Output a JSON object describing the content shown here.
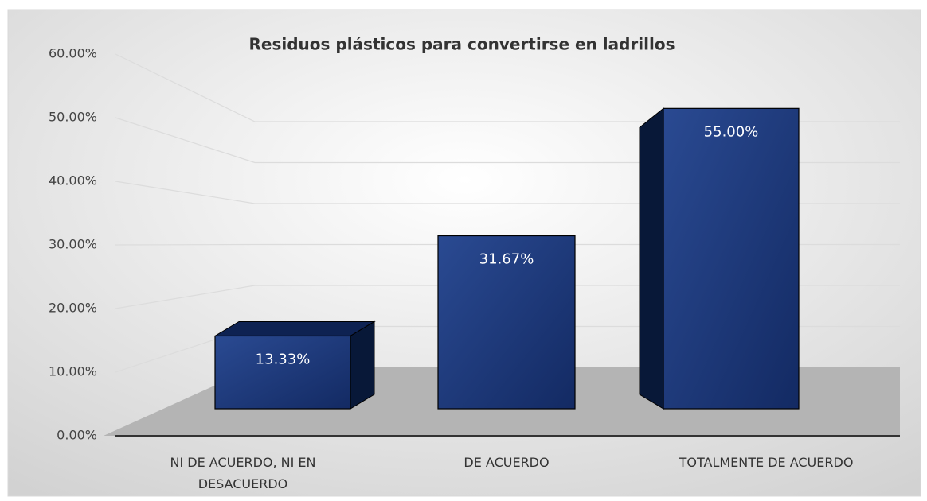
{
  "chart_data": {
    "type": "bar3d",
    "title": "Residuos plásticos para convertirse en ladrillos",
    "categories": [
      "NI DE ACUERDO, NI EN DESACUERDO",
      "DE ACUERDO",
      "TOTALMENTE DE ACUERDO"
    ],
    "values": [
      13.33,
      31.67,
      55.0
    ],
    "value_labels": [
      "13.33%",
      "31.67%",
      "55.00%"
    ],
    "color": "#1f3a7a",
    "ylim": [
      0,
      60
    ],
    "yticks": [
      {
        "value": 0,
        "label": "0.00%"
      },
      {
        "value": 10,
        "label": "10.00%"
      },
      {
        "value": 20,
        "label": "20.00%"
      },
      {
        "value": 30,
        "label": "30.00%"
      },
      {
        "value": 40,
        "label": "40.00%"
      },
      {
        "value": 50,
        "label": "50.00%"
      },
      {
        "value": 60,
        "label": "60.00%"
      }
    ],
    "grid": true
  }
}
